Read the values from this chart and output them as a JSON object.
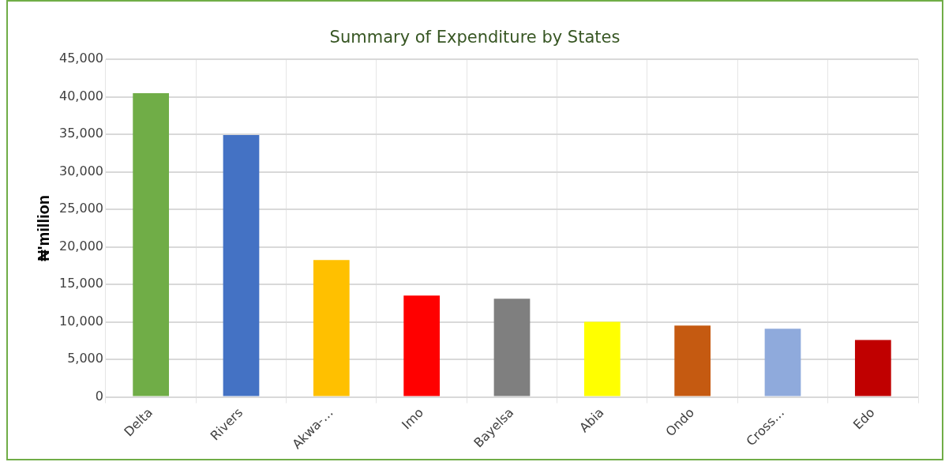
{
  "chart_data": {
    "type": "bar",
    "title": "Summary of Expenditure by States",
    "ylabel": "₦'million",
    "categories": [
      "Delta",
      "Rivers",
      "Akwa-…",
      "Imo",
      "Bayelsa",
      "Abia",
      "Ondo",
      "Cross…",
      "Edo"
    ],
    "values": [
      40500,
      34900,
      18250,
      13500,
      13100,
      10000,
      9500,
      9100,
      7600
    ],
    "colors": [
      "#70ad47",
      "#4472c4",
      "#ffc000",
      "#ff0000",
      "#7f7f7f",
      "#ffff00",
      "#c55a11",
      "#8faadc",
      "#c00000"
    ],
    "ylim": [
      0,
      45000
    ],
    "yticks": [
      {
        "value": 0,
        "label": "0"
      },
      {
        "value": 5000,
        "label": "5,000"
      },
      {
        "value": 10000,
        "label": "10,000"
      },
      {
        "value": 15000,
        "label": "15,000"
      },
      {
        "value": 20000,
        "label": "20,000"
      },
      {
        "value": 25000,
        "label": "25,000"
      },
      {
        "value": 30000,
        "label": "30,000"
      },
      {
        "value": 35000,
        "label": "35,000"
      },
      {
        "value": 40000,
        "label": "40,000"
      },
      {
        "value": 45000,
        "label": "45,000"
      }
    ],
    "grid": true,
    "legend": false
  }
}
